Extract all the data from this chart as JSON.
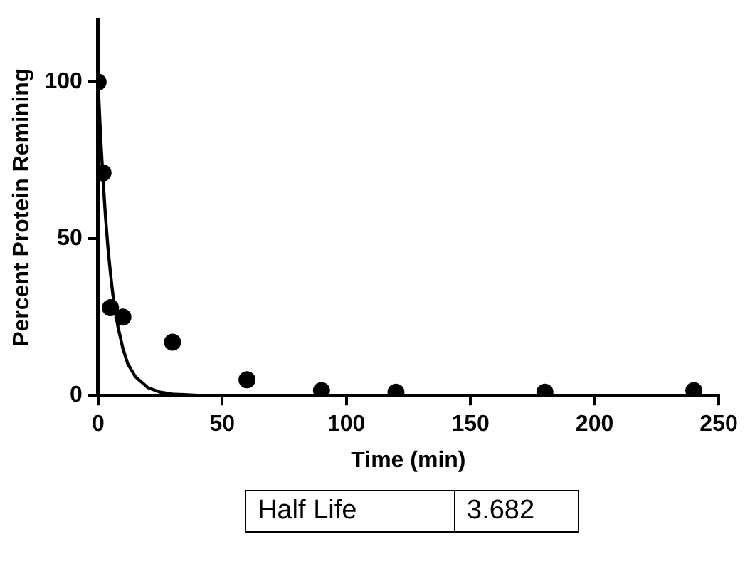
{
  "chart_data": {
    "type": "scatter",
    "xlabel": "Time (min)",
    "ylabel": "Percent Protein Remining",
    "xlim": [
      0,
      250
    ],
    "xticks": [
      0,
      50,
      100,
      150,
      200,
      250
    ],
    "ylim": [
      0,
      120
    ],
    "yticks": [
      0,
      50,
      100
    ],
    "grid": false,
    "legend": false,
    "marker": "circle",
    "series": [
      {
        "type": "scatter",
        "color": "#000000",
        "x": [
          0,
          2,
          5,
          10,
          30,
          60,
          90,
          120,
          180,
          240
        ],
        "values": [
          100,
          71,
          28,
          25,
          17,
          5,
          1.5,
          1,
          1,
          1.5
        ]
      },
      {
        "type": "line",
        "color": "#000000",
        "marker": "none",
        "line_style": "solid",
        "x": [
          0,
          1,
          2,
          3,
          4,
          5,
          6,
          8,
          10,
          12,
          15,
          20,
          25,
          30,
          40,
          250
        ],
        "values": [
          100,
          83,
          69,
          57,
          47,
          39,
          32,
          22,
          15,
          10,
          6,
          2.5,
          1,
          0.4,
          0,
          0
        ]
      }
    ],
    "annotations": [
      "Half Life",
      "3.682"
    ]
  }
}
